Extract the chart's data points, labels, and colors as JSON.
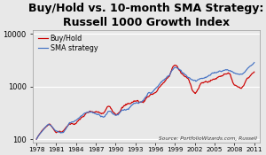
{
  "title": "Buy/Hold vs. 10-month SMA Strategy:\nRussell 1000 Growth Index",
  "title_fontsize": 9,
  "source_text": "Source: PortfolioWizards.com, Russell",
  "legend_labels": [
    "Buy/Hold",
    "SMA strategy"
  ],
  "line_colors": [
    "#cc0000",
    "#4472c4"
  ],
  "xticks": [
    1978,
    1981,
    1984,
    1987,
    1990,
    1993,
    1996,
    1999,
    2002,
    2005,
    2008,
    2011
  ],
  "yticks": [
    100,
    1000,
    10000
  ],
  "ylim": [
    85,
    12000
  ],
  "xlim": [
    1977.5,
    2011.8
  ],
  "background_color": "#e8e8e8",
  "years": [
    1978,
    1979,
    1980,
    1981,
    1982,
    1983,
    1984,
    1985,
    1986,
    1987,
    1988,
    1989,
    1990,
    1991,
    1992,
    1993,
    1994,
    1995,
    1996,
    1997,
    1998,
    1999,
    2000,
    2001,
    2002,
    2003,
    2004,
    2005,
    2006,
    2007,
    2008,
    2009,
    2010,
    2011
  ],
  "bh_vals": [
    100,
    155,
    195,
    150,
    155,
    210,
    230,
    295,
    340,
    330,
    300,
    395,
    330,
    480,
    540,
    620,
    590,
    820,
    980,
    1380,
    1800,
    3150,
    2100,
    1550,
    950,
    1350,
    1480,
    1650,
    1950,
    2300,
    1350,
    1200,
    1850,
    2500
  ],
  "sma_vals": [
    100,
    145,
    190,
    155,
    140,
    220,
    260,
    330,
    380,
    355,
    340,
    445,
    390,
    510,
    580,
    670,
    650,
    890,
    1060,
    1420,
    1800,
    2650,
    2100,
    1750,
    1600,
    1850,
    2000,
    2200,
    2500,
    2650,
    2300,
    2100,
    2700,
    3500
  ]
}
